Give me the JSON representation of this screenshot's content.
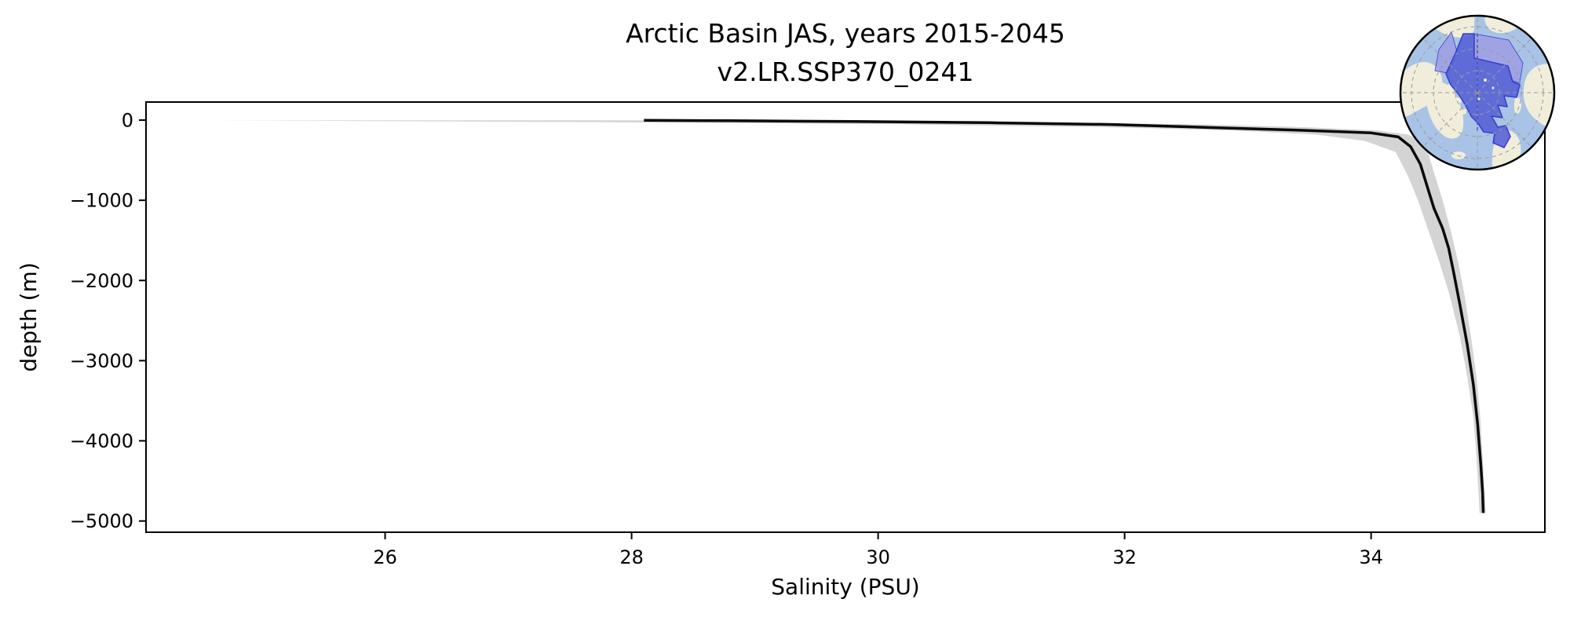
{
  "figure": {
    "background": "#ffffff"
  },
  "chart_data": {
    "type": "line",
    "title": "Arctic Basin JAS, years 2015-2045",
    "subtitle": "v2.LR.SSP370_0241",
    "xlabel": "Salinity (PSU)",
    "ylabel": "depth (m)",
    "xlim": [
      24.06,
      35.41
    ],
    "ylim": [
      -5140,
      225
    ],
    "grid": false,
    "legend": null,
    "x_ticks": [
      {
        "value": 26,
        "label": "26"
      },
      {
        "value": 28,
        "label": "28"
      },
      {
        "value": 30,
        "label": "30"
      },
      {
        "value": 32,
        "label": "32"
      },
      {
        "value": 34,
        "label": "34"
      }
    ],
    "y_ticks": [
      {
        "value": 0,
        "label": "0"
      },
      {
        "value": -1000,
        "label": "−1000"
      },
      {
        "value": -2000,
        "label": "−2000"
      },
      {
        "value": -3000,
        "label": "−3000"
      },
      {
        "value": -4000,
        "label": "−4000"
      },
      {
        "value": -5000,
        "label": "−5000"
      }
    ],
    "series": [
      {
        "name": "mean salinity profile",
        "color": "#0a0a0a",
        "linewidth": 3.5,
        "points": [
          [
            28.1,
            -2
          ],
          [
            28.8,
            -8
          ],
          [
            29.8,
            -18
          ],
          [
            30.9,
            -32
          ],
          [
            31.9,
            -55
          ],
          [
            32.75,
            -95
          ],
          [
            33.4,
            -125
          ],
          [
            34.0,
            -160
          ],
          [
            34.22,
            -210
          ],
          [
            34.32,
            -330
          ],
          [
            34.4,
            -550
          ],
          [
            34.46,
            -850
          ],
          [
            34.51,
            -1100
          ],
          [
            34.58,
            -1350
          ],
          [
            34.63,
            -1600
          ],
          [
            34.67,
            -1900
          ],
          [
            34.72,
            -2300
          ],
          [
            34.78,
            -2800
          ],
          [
            34.83,
            -3300
          ],
          [
            34.865,
            -3800
          ],
          [
            34.89,
            -4300
          ],
          [
            34.905,
            -4650
          ],
          [
            34.91,
            -4900
          ]
        ]
      }
    ],
    "envelope": {
      "name": "salinity spread envelope",
      "color": "#cfcfcf",
      "opacity": 0.9,
      "points_depth_min_max": [
        [
          -2,
          24.6,
          28.25
        ],
        [
          -10,
          25.6,
          29.4
        ],
        [
          -25,
          27.6,
          31.0
        ],
        [
          -50,
          30.1,
          32.5
        ],
        [
          -90,
          31.9,
          33.5
        ],
        [
          -130,
          32.9,
          34.05
        ],
        [
          -180,
          33.55,
          34.3
        ],
        [
          -260,
          33.95,
          34.4
        ],
        [
          -400,
          34.2,
          34.46
        ],
        [
          -700,
          34.3,
          34.52
        ],
        [
          -1000,
          34.38,
          34.58
        ],
        [
          -1400,
          34.47,
          34.65
        ],
        [
          -1800,
          34.56,
          34.71
        ],
        [
          -2200,
          34.64,
          34.76
        ],
        [
          -2700,
          34.72,
          34.81
        ],
        [
          -3200,
          34.78,
          34.855
        ],
        [
          -3700,
          34.83,
          34.885
        ],
        [
          -4200,
          34.855,
          34.905
        ],
        [
          -4900,
          34.88,
          34.93
        ]
      ]
    }
  },
  "map_inset": {
    "description": "circular north-polar map with Arctic Basin region highlighted",
    "colors": {
      "ocean": "#a8c3e6",
      "land": "#f0eddb",
      "region": "#5763d6",
      "region_light": "#9e98e2",
      "region_outline": "#3a3ecf",
      "graticule": "#9a9a9a",
      "meridian": "#4c4cc0",
      "rim": "#000000"
    }
  }
}
